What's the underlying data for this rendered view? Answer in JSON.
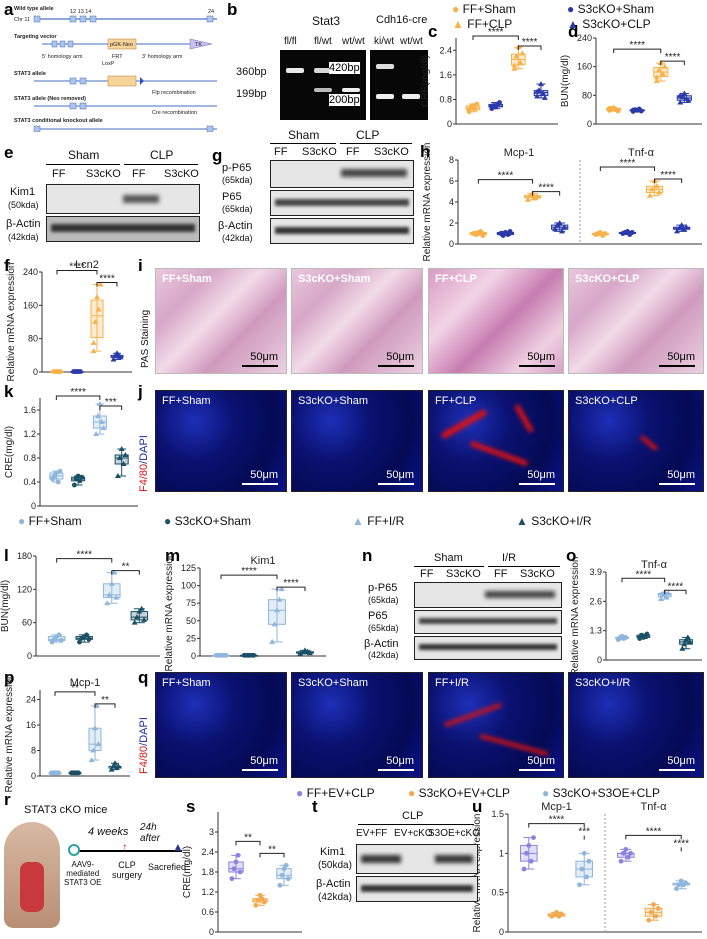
{
  "panels": {
    "a": "a",
    "b": "b",
    "c": "c",
    "d": "d",
    "e": "e",
    "f": "f",
    "g": "g",
    "h": "h",
    "i": "i",
    "j": "j",
    "k": "k",
    "l": "l",
    "m": "m",
    "n": "n",
    "o": "o",
    "p": "p",
    "q": "q",
    "r": "r",
    "s": "s",
    "t": "t",
    "u": "u"
  },
  "legend_top": [
    "FF+Sham",
    "S3cKO+Sham",
    "FF+CLP",
    "S3cKO+CLP"
  ],
  "legend_mid": [
    "FF+Sham",
    "S3cKO+Sham",
    "FF+I/R",
    "S3cKO+I/R"
  ],
  "legend_bottom": [
    "FF+EV+CLP",
    "S3cKO+EV+CLP",
    "S3cKO+S3OE+CLP"
  ],
  "colors": {
    "ff": "#f7b24a",
    "s3": "#2a3aa8",
    "ffclp": "#f7b24a",
    "s3clp": "#2a3aa8",
    "ir_ff": "#8fb6dc",
    "ir_s3": "#1a5166",
    "u_ff": "#8b83e0",
    "u_s3": "#f4a94e",
    "u_oe": "#8fb6dc"
  },
  "schematic": {
    "rows": [
      "Wild type allele",
      "Targeting vector",
      "STAT3 allele",
      "STAT3 allele (Neo removed)",
      "STAT3 conditional knockout allele"
    ],
    "chr": "Chr 11",
    "exons": "12 13 14",
    "neo": "pGK-Neo",
    "tk": "TK",
    "arm5": "5' homology arm",
    "arm3": "3' homology arm",
    "frt": "FRT",
    "loxp": "LoxP",
    "flp": "Flp recombination",
    "cre": "Cre recombination",
    "e24": "24"
  },
  "gel": {
    "stat3_title": "Stat3",
    "cdh_title": "Cdh16-cre",
    "stat3_lanes": [
      "fl/fl",
      "fl/wt",
      "wt/wt"
    ],
    "cdh_lanes": [
      "ki/wt",
      "wt/wt"
    ],
    "sizes_left": [
      "360bp",
      "199bp"
    ],
    "sizes_right": [
      "420bp",
      "200bp"
    ]
  },
  "blot_e": {
    "groups": [
      "Sham",
      "CLP"
    ],
    "lanes": [
      "FF",
      "S3cKO",
      "FF",
      "S3cKO"
    ],
    "rows": [
      "Kim1",
      "(50kda)",
      "β-Actin",
      "(42kda)"
    ]
  },
  "blot_g": {
    "groups": [
      "Sham",
      "CLP"
    ],
    "lanes": [
      "FF",
      "S3cKO",
      "FF",
      "S3cKO"
    ],
    "rows": [
      "p-P65",
      "(65kda)",
      "P65",
      "(65kda)",
      "β-Actin",
      "(42kda)"
    ]
  },
  "blot_n": {
    "groups": [
      "Sham",
      "I/R"
    ],
    "lanes": [
      "FF",
      "S3cKO",
      "FF",
      "S3cKO"
    ],
    "rows": [
      "p-P65",
      "(65kda)",
      "P65",
      "(65kda)",
      "β-Actin",
      "(42kda)"
    ]
  },
  "blot_t": {
    "group": "CLP",
    "lanes": [
      "EV+FF",
      "EV+cKO",
      "S3OE+cKO"
    ],
    "rows": [
      "Kim1",
      "(50kda)",
      "β-Actin",
      "(42kda)"
    ]
  },
  "micro_i": {
    "labels": [
      "FF+Sham",
      "S3cKO+Sham",
      "FF+CLP",
      "S3cKO+CLP"
    ],
    "side": "PAS Staining",
    "scale": "50μm"
  },
  "micro_j": {
    "labels": [
      "FF+Sham",
      "S3cKO+Sham",
      "FF+CLP",
      "S3cKO+CLP"
    ],
    "side_red": "F4/80",
    "side_blue": "/DAPI",
    "scale": "50μm"
  },
  "micro_q": {
    "labels": [
      "FF+Sham",
      "S3cKO+Sham",
      "FF+I/R",
      "S3cKO+I/R"
    ],
    "side_red": "F4/80",
    "side_blue": "/DAPI",
    "scale": "50μm"
  },
  "panel_r": {
    "title": "STAT3 cKO mice",
    "weeks": "4 weeks",
    "after": "24h\nafter",
    "aav": "AAV9-\nmediated\nSTAT3 OE",
    "clp": "CLP\nsurgery",
    "sac": "Sacrefied"
  },
  "chart_data": [
    {
      "id": "c",
      "type": "box",
      "ylabel": "CRE(mg/dl)",
      "yticks": [
        0.0,
        0.8,
        1.6,
        2.4
      ],
      "ylim": [
        0,
        2.8
      ],
      "stars": [
        "****",
        "****"
      ],
      "series": [
        {
          "name": "FF+Sham",
          "values": [
            0.45,
            0.55,
            0.6,
            0.5,
            0.65,
            0.4
          ]
        },
        {
          "name": "S3cKO+Sham",
          "values": [
            0.5,
            0.6,
            0.55,
            0.65,
            0.7,
            0.58
          ]
        },
        {
          "name": "FF+CLP",
          "values": [
            1.9,
            2.2,
            2.5,
            2.0,
            2.3,
            1.8
          ]
        },
        {
          "name": "S3cKO+CLP",
          "values": [
            0.9,
            1.1,
            1.3,
            1.0,
            0.85,
            1.05
          ]
        }
      ]
    },
    {
      "id": "d",
      "type": "box",
      "ylabel": "BUN(mg/dl)",
      "yticks": [
        0,
        80,
        160,
        240
      ],
      "ylim": [
        0,
        240
      ],
      "stars": [
        "****",
        "****"
      ],
      "series": [
        {
          "name": "FF+Sham",
          "values": [
            38,
            42,
            45,
            40,
            36,
            44
          ]
        },
        {
          "name": "S3cKO+Sham",
          "values": [
            35,
            40,
            38,
            42,
            36,
            39
          ]
        },
        {
          "name": "FF+CLP",
          "values": [
            120,
            150,
            170,
            140,
            160,
            130
          ]
        },
        {
          "name": "S3cKO+CLP",
          "values": [
            60,
            75,
            85,
            70,
            65,
            80
          ]
        }
      ]
    },
    {
      "id": "h",
      "type": "box",
      "ylabel": "Relative mRNA expression",
      "groups": [
        "Mcp-1",
        "Tnf-α"
      ],
      "yticks": [
        0,
        2,
        4,
        6,
        8
      ],
      "ylim": [
        0,
        8
      ],
      "stars": [
        "****",
        "****",
        "****",
        "****"
      ],
      "series": [
        {
          "name": "Mcp-1",
          "values": [
            [
              1.0,
              0.9,
              1.1,
              1.2,
              0.8
            ],
            [
              1.0,
              0.8,
              1.1,
              0.9,
              1.2
            ],
            [
              4.2,
              4.6,
              4.8,
              4.4,
              4.5
            ],
            [
              1.4,
              1.8,
              2.0,
              1.2,
              1.6
            ]
          ]
        },
        {
          "name": "Tnf-α",
          "values": [
            [
              0.9,
              1.0,
              1.1,
              0.8,
              1.0
            ],
            [
              1.0,
              1.1,
              1.2,
              0.9,
              1.1
            ],
            [
              4.6,
              5.2,
              6.0,
              5.5,
              4.9
            ],
            [
              1.2,
              1.5,
              1.8,
              1.4,
              1.6
            ]
          ]
        }
      ]
    },
    {
      "id": "f",
      "type": "box",
      "title": "Lcn2",
      "ylabel": "Relative mRNA expression",
      "yticks": [
        0,
        80,
        160,
        240
      ],
      "ylim": [
        0,
        240
      ],
      "stars": [
        "****",
        "****"
      ],
      "series": [
        {
          "name": "FF+Sham",
          "values": [
            1,
            1,
            1,
            1,
            1
          ]
        },
        {
          "name": "S3cKO+Sham",
          "values": [
            1,
            1,
            1,
            1,
            1
          ]
        },
        {
          "name": "FF+CLP",
          "values": [
            70,
            120,
            180,
            150,
            210,
            50
          ]
        },
        {
          "name": "S3cKO+CLP",
          "values": [
            30,
            38,
            45,
            40,
            35
          ]
        }
      ]
    },
    {
      "id": "k",
      "type": "box",
      "ylabel": "CRE(mg/dl)",
      "yticks": [
        0.0,
        0.4,
        0.8,
        1.2,
        1.6
      ],
      "ylim": [
        0,
        1.8
      ],
      "stars": [
        "****",
        "***"
      ],
      "series": [
        {
          "name": "FF+Sham",
          "values": [
            0.45,
            0.5,
            0.55,
            0.4,
            0.58
          ]
        },
        {
          "name": "S3cKO+Sham",
          "values": [
            0.35,
            0.45,
            0.5,
            0.42,
            0.48
          ]
        },
        {
          "name": "FF+I/R",
          "values": [
            1.2,
            1.5,
            1.7,
            1.4,
            1.3
          ]
        },
        {
          "name": "S3cKO+I/R",
          "values": [
            0.5,
            0.8,
            0.95,
            0.7,
            0.85
          ]
        }
      ]
    },
    {
      "id": "l",
      "type": "box",
      "ylabel": "BUN(mg/dl)",
      "yticks": [
        0,
        60,
        120,
        180
      ],
      "ylim": [
        0,
        180
      ],
      "stars": [
        "****",
        "**"
      ],
      "series": [
        {
          "name": "FF+Sham",
          "values": [
            25,
            30,
            35,
            38,
            28
          ]
        },
        {
          "name": "S3cKO+Sham",
          "values": [
            25,
            32,
            35,
            38,
            30
          ]
        },
        {
          "name": "FF+I/R",
          "values": [
            95,
            110,
            130,
            150,
            105
          ]
        },
        {
          "name": "S3cKO+I/R",
          "values": [
            60,
            70,
            80,
            85,
            65
          ]
        }
      ]
    },
    {
      "id": "m",
      "type": "box",
      "title": "Kim1",
      "ylabel": "Relative mRNA expression",
      "yticks": [
        0,
        25,
        50,
        75,
        100,
        125
      ],
      "ylim": [
        0,
        125
      ],
      "stars": [
        "****",
        "****"
      ],
      "series": [
        {
          "name": "FF+Sham",
          "values": [
            1,
            1,
            1,
            1,
            1
          ]
        },
        {
          "name": "S3cKO+Sham",
          "values": [
            1,
            1,
            1,
            1,
            1
          ]
        },
        {
          "name": "FF+I/R",
          "values": [
            20,
            45,
            65,
            80,
            95
          ]
        },
        {
          "name": "S3cKO+I/R",
          "values": [
            3,
            5,
            8,
            6,
            4
          ]
        }
      ]
    },
    {
      "id": "o",
      "type": "box",
      "title": "Tnf-α",
      "ylabel": "Relative mRNA expression",
      "yticks": [
        0.0,
        1.3,
        2.6,
        3.9
      ],
      "ylim": [
        0,
        3.9
      ],
      "stars": [
        "****",
        "****"
      ],
      "series": [
        {
          "name": "FF+Sham",
          "values": [
            0.9,
            1.0,
            1.05,
            0.95,
            1.0
          ]
        },
        {
          "name": "S3cKO+Sham",
          "values": [
            0.95,
            1.1,
            1.0,
            1.05,
            1.15
          ]
        },
        {
          "name": "FF+I/R",
          "values": [
            2.7,
            2.9,
            3.0,
            2.8,
            2.95
          ]
        },
        {
          "name": "S3cKO+I/R",
          "values": [
            0.5,
            0.7,
            0.9,
            1.0,
            0.8
          ]
        }
      ]
    },
    {
      "id": "p",
      "type": "box",
      "title": "Mcp-1",
      "ylabel": "Relative mRNA expression",
      "yticks": [
        0,
        8,
        16,
        24
      ],
      "ylim": [
        0,
        27
      ],
      "stars": [
        "**",
        "**"
      ],
      "series": [
        {
          "name": "FF+Sham",
          "values": [
            1,
            1,
            1,
            1,
            1
          ]
        },
        {
          "name": "S3cKO+Sham",
          "values": [
            1,
            1,
            1,
            1,
            1
          ]
        },
        {
          "name": "FF+I/R",
          "values": [
            5,
            8,
            15,
            22,
            10
          ]
        },
        {
          "name": "S3cKO+I/R",
          "values": [
            2,
            3,
            4,
            2.5,
            3
          ]
        }
      ]
    },
    {
      "id": "s",
      "type": "box",
      "ylabel": "CRE(mg/dl)",
      "yticks": [
        0.0,
        0.6,
        1.2,
        1.8,
        2.4,
        3.0
      ],
      "ylim": [
        0,
        3.6
      ],
      "stars": [
        "**",
        "**"
      ],
      "series": [
        {
          "name": "FF+EV+CLP",
          "values": [
            1.6,
            1.9,
            2.1,
            2.3,
            1.8
          ]
        },
        {
          "name": "S3cKO+EV+CLP",
          "values": [
            0.8,
            0.95,
            1.1,
            1.0,
            0.9
          ]
        },
        {
          "name": "S3cKO+S3OE+CLP",
          "values": [
            1.4,
            1.7,
            1.9,
            2.0,
            1.6
          ]
        }
      ]
    },
    {
      "id": "u",
      "type": "box",
      "ylabel": "Relative mRNA expression",
      "groups": [
        "Mcp-1",
        "Tnf-α"
      ],
      "yticks": [
        0.0,
        0.5,
        1.0,
        1.5
      ],
      "ylim": [
        0,
        1.5
      ],
      "stars": [
        "****",
        "***",
        "****",
        "****"
      ],
      "series": [
        {
          "name": "Mcp-1",
          "values": [
            [
              0.8,
              1.0,
              1.1,
              0.9,
              1.2
            ],
            [
              0.2,
              0.22,
              0.25,
              0.2,
              0.23
            ],
            [
              0.6,
              0.8,
              1.0,
              0.7,
              0.9
            ]
          ]
        },
        {
          "name": "Tnf-α",
          "values": [
            [
              0.9,
              1.0,
              1.05,
              0.95,
              1.0
            ],
            [
              0.15,
              0.25,
              0.35,
              0.2,
              0.3
            ],
            [
              0.55,
              0.6,
              0.65,
              0.6,
              0.62
            ]
          ]
        }
      ]
    }
  ]
}
